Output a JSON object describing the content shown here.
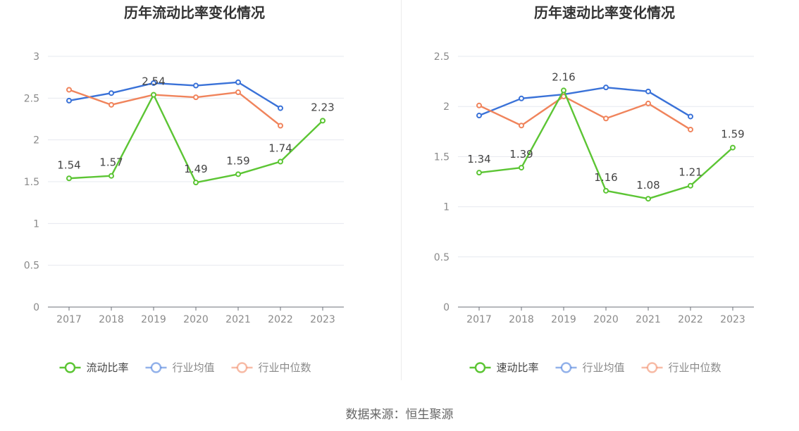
{
  "footer": {
    "source": "数据来源：恒生聚源"
  },
  "colors": {
    "company": "#5cc534",
    "industry_avg": "#3a72d8",
    "industry_median": "#f0845c"
  },
  "chart_data": [
    {
      "type": "line",
      "title": "历年流动比率变化情况",
      "xlabel": "",
      "ylabel": "",
      "categories": [
        "2017",
        "2018",
        "2019",
        "2020",
        "2021",
        "2022",
        "2023"
      ],
      "ylim": [
        0,
        3
      ],
      "yticks": [
        "0",
        "0.5",
        "1",
        "1.5",
        "2",
        "2.5",
        "3"
      ],
      "grid": true,
      "legend": "bottom",
      "series": [
        {
          "name": "流动比率",
          "color": "#5cc534",
          "labels": true,
          "values": [
            1.54,
            1.57,
            2.54,
            1.49,
            1.59,
            1.74,
            2.23
          ],
          "value_labels": [
            "1.54",
            "1.57",
            "2.54",
            "1.49",
            "1.59",
            "1.74",
            "2.23"
          ]
        },
        {
          "name": "行业均值",
          "color": "#3a72d8",
          "labels": false,
          "values": [
            2.47,
            2.56,
            2.68,
            2.65,
            2.69,
            2.38,
            null
          ]
        },
        {
          "name": "行业中位数",
          "color": "#f0845c",
          "labels": false,
          "values": [
            2.6,
            2.42,
            2.54,
            2.51,
            2.57,
            2.17,
            null
          ]
        }
      ]
    },
    {
      "type": "line",
      "title": "历年速动比率变化情况",
      "xlabel": "",
      "ylabel": "",
      "categories": [
        "2017",
        "2018",
        "2019",
        "2020",
        "2021",
        "2022",
        "2023"
      ],
      "ylim": [
        0,
        2.5
      ],
      "yticks": [
        "0",
        "0.5",
        "1",
        "1.5",
        "2",
        "2.5"
      ],
      "grid": true,
      "legend": "bottom",
      "series": [
        {
          "name": "速动比率",
          "color": "#5cc534",
          "labels": true,
          "values": [
            1.34,
            1.39,
            2.16,
            1.16,
            1.08,
            1.21,
            1.59
          ],
          "value_labels": [
            "1.34",
            "1.39",
            "2.16",
            "1.16",
            "1.08",
            "1.21",
            "1.59"
          ]
        },
        {
          "name": "行业均值",
          "color": "#3a72d8",
          "labels": false,
          "values": [
            1.91,
            2.08,
            2.12,
            2.19,
            2.15,
            1.9,
            null
          ]
        },
        {
          "name": "行业中位数",
          "color": "#f0845c",
          "labels": false,
          "values": [
            2.01,
            1.81,
            2.1,
            1.88,
            2.03,
            1.77,
            null
          ]
        }
      ]
    }
  ]
}
